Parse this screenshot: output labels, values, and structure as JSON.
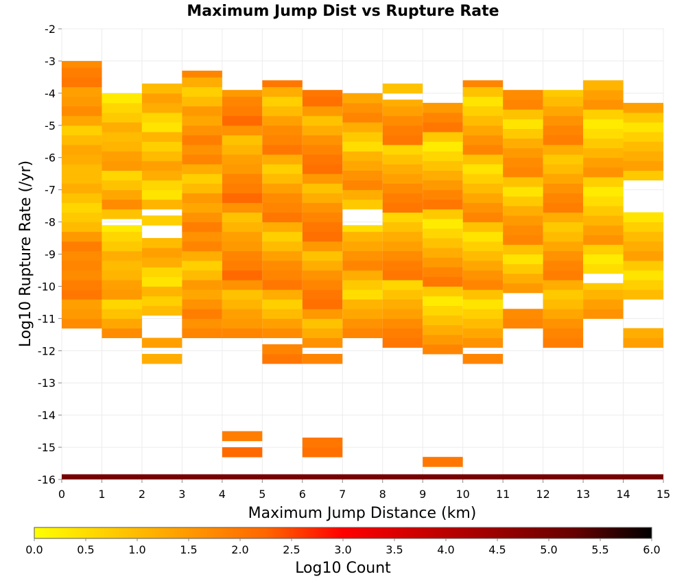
{
  "chart_data": {
    "type": "heatmap",
    "title": "Maximum Jump Dist vs Rupture Rate",
    "xlabel": "Maximum Jump Distance (km)",
    "ylabel": "Log10 Rupture Rate (/yr)",
    "xlim": [
      0,
      15
    ],
    "ylim": [
      -16,
      -2
    ],
    "x_ticks": [
      "0",
      "1",
      "2",
      "3",
      "4",
      "5",
      "6",
      "7",
      "8",
      "9",
      "10",
      "11",
      "12",
      "13",
      "14",
      "15"
    ],
    "y_ticks": [
      "-2",
      "-3",
      "-4",
      "-5",
      "-6",
      "-7",
      "-8",
      "-9",
      "-10",
      "-11",
      "-12",
      "-13",
      "-14",
      "-15",
      "-16"
    ],
    "grid": true,
    "bin_width_x": 1,
    "bin_height_y": 0.3,
    "colorbar": {
      "label": "Log10 Count",
      "min": 0,
      "max": 6,
      "ticks": [
        "0.0",
        "0.5",
        "1.0",
        "1.5",
        "2.0",
        "2.5",
        "3.0",
        "3.5",
        "4.0",
        "4.5",
        "5.0",
        "5.5",
        "6.0"
      ],
      "colors": [
        "#ffff00",
        "#ffcc00",
        "#ff9900",
        "#ff6600",
        "#ff0000",
        "#cc0000",
        "#990000",
        "#660000",
        "#000000"
      ]
    },
    "columns": [
      {
        "x": 0,
        "ranges": [
          [
            -11.3,
            -3.0
          ]
        ],
        "levels": [
          1.7,
          1.5,
          1.4,
          2.0,
          1.9,
          1.7,
          1.8,
          1.7,
          1.9,
          1.5,
          1.0,
          0.8,
          0.6,
          0.9,
          1.2,
          1.0,
          1.0,
          1.2,
          1.3,
          1.0,
          0.7,
          1.3
        ]
      },
      {
        "x": 1,
        "ranges": [
          [
            -11.6,
            -8.1
          ],
          [
            -7.9,
            -3.9
          ]
        ],
        "levels": [
          1.7,
          1.3,
          0.9,
          0.6,
          1.5,
          1.4,
          1.1,
          1.0,
          1.2,
          0.8,
          0.6,
          0.3,
          0.9
        ]
      },
      {
        "x": 2,
        "ranges": [
          [
            -12.4,
            -12.1
          ],
          [
            -11.9,
            -11.6
          ],
          [
            -10.9,
            -8.4
          ],
          [
            -8.1,
            -7.8
          ],
          [
            -7.6,
            -3.6
          ]
        ],
        "levels": [
          1.2,
          1.4,
          1.0,
          0.7,
          1.1,
          0.4,
          0.6
        ]
      },
      {
        "x": 3,
        "ranges": [
          [
            -11.6,
            -3.3
          ]
        ],
        "levels": [
          1.8,
          1.6,
          1.9,
          1.6,
          1.3,
          1.5,
          1.0,
          0.7,
          1.2
        ]
      },
      {
        "x": 4,
        "ranges": [
          [
            -15.3,
            -15.0
          ],
          [
            -14.8,
            -14.5
          ],
          [
            -11.6,
            -3.9
          ]
        ],
        "levels": [
          2.2,
          1.9,
          1.8,
          1.5,
          1.4,
          1.1,
          0.9,
          1.6
        ]
      },
      {
        "x": 5,
        "ranges": [
          [
            -12.4,
            -11.8
          ],
          [
            -11.6,
            -3.6
          ]
        ],
        "levels": [
          2.0,
          1.8,
          1.7,
          1.4,
          1.0,
          0.7,
          1.2
        ]
      },
      {
        "x": 6,
        "ranges": [
          [
            -15.3,
            -14.7
          ],
          [
            -12.4,
            -12.1
          ],
          [
            -11.9,
            -3.9
          ]
        ],
        "levels": [
          2.1,
          2.0,
          1.8,
          1.6,
          1.2,
          0.9,
          1.5
        ]
      },
      {
        "x": 7,
        "ranges": [
          [
            -11.6,
            -8.1
          ],
          [
            -7.6,
            -3.9
          ]
        ],
        "levels": [
          1.8,
          1.6,
          1.3,
          1.1,
          0.5,
          0.8,
          1.2
        ]
      },
      {
        "x": 8,
        "ranges": [
          [
            -11.9,
            -4.2
          ],
          [
            -4.0,
            -3.6
          ]
        ],
        "levels": [
          2.0,
          1.9,
          1.7,
          1.4,
          1.2,
          0.9,
          0.6
        ]
      },
      {
        "x": 9,
        "ranges": [
          [
            -15.6,
            -15.3
          ],
          [
            -12.1,
            -4.2
          ]
        ],
        "levels": [
          2.0,
          1.8,
          1.5,
          1.2,
          0.9,
          0.6,
          0.3,
          0.8
        ]
      },
      {
        "x": 10,
        "ranges": [
          [
            -12.4,
            -12.1
          ],
          [
            -11.9,
            -3.6
          ]
        ],
        "levels": [
          1.8,
          1.6,
          1.3,
          1.0,
          0.7,
          0.4,
          0.9
        ]
      },
      {
        "x": 11,
        "ranges": [
          [
            -11.3,
            -10.7
          ],
          [
            -10.2,
            -3.9
          ]
        ],
        "levels": [
          1.8,
          1.7,
          1.5,
          1.2,
          0.8,
          0.4,
          0.9
        ]
      },
      {
        "x": 12,
        "ranges": [
          [
            -11.9,
            -3.9
          ]
        ],
        "levels": [
          1.9,
          1.8,
          1.6,
          1.3,
          1.0,
          0.8,
          1.2
        ]
      },
      {
        "x": 13,
        "ranges": [
          [
            -11.0,
            -9.9
          ],
          [
            -9.6,
            -3.6
          ]
        ],
        "levels": [
          1.6,
          1.4,
          1.1,
          0.8,
          0.5,
          0.3,
          0.7
        ]
      },
      {
        "x": 14,
        "ranges": [
          [
            -11.9,
            -11.3
          ],
          [
            -10.4,
            -7.6
          ],
          [
            -6.7,
            -4.2
          ]
        ],
        "levels": [
          1.4,
          1.2,
          1.0,
          0.7,
          0.4,
          0.8
        ]
      }
    ],
    "bottom_band": {
      "y_from": -16.0,
      "y_to": -15.84,
      "level": 5.0
    }
  }
}
